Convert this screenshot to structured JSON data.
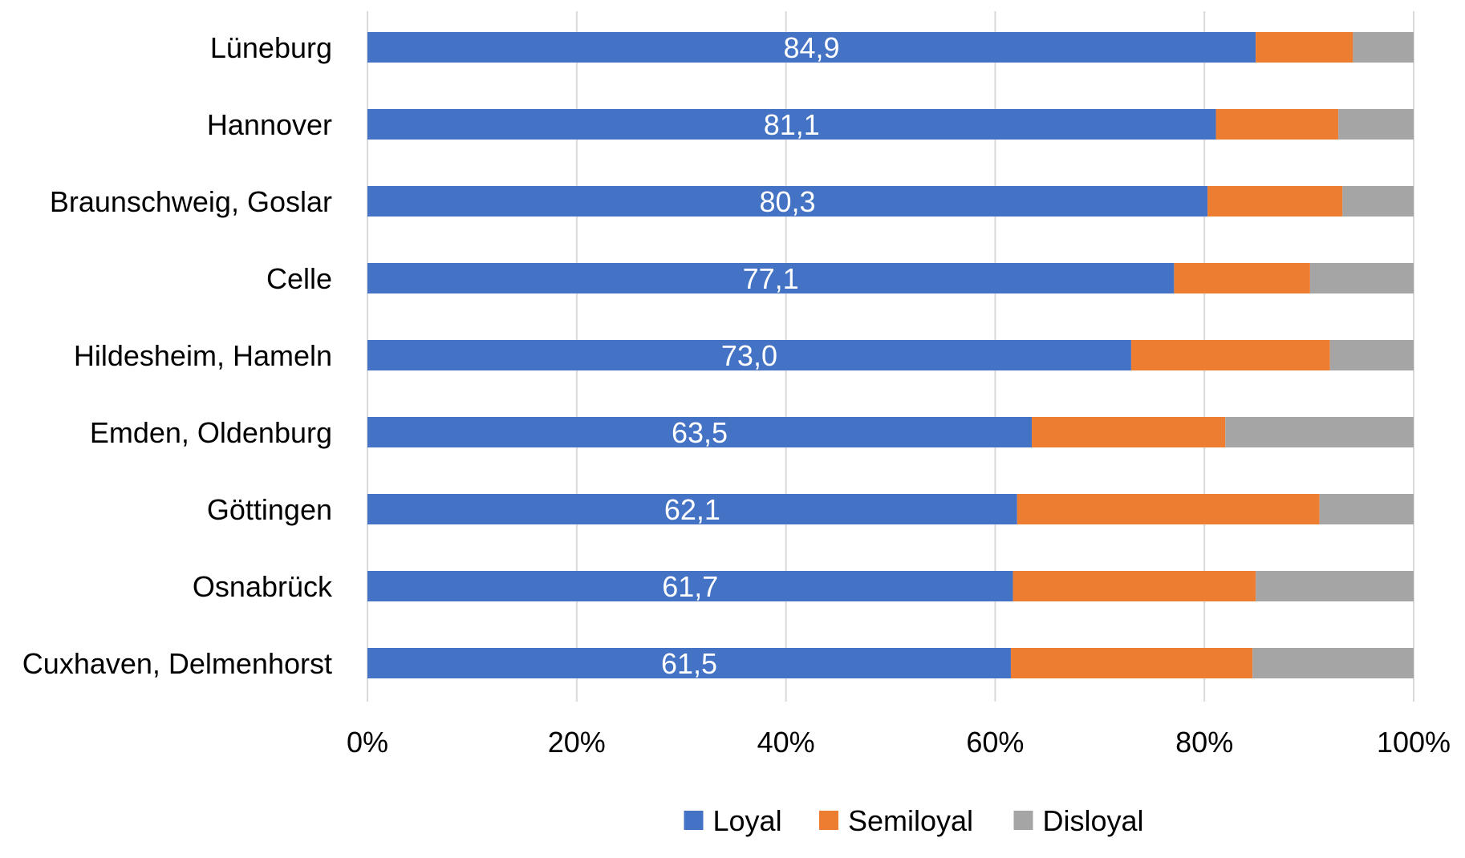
{
  "chart_data": {
    "type": "bar",
    "orientation": "horizontal",
    "stacked": "percent",
    "categories": [
      "Lüneburg",
      "Hannover",
      "Braunschweig, Goslar",
      "Celle",
      "Hildesheim, Hameln",
      "Emden, Oldenburg",
      "Göttingen",
      "Osnabrück",
      "Cuxhaven, Delmenhorst"
    ],
    "series": [
      {
        "name": "Loyal",
        "color": "#4472C4",
        "values": [
          84.9,
          81.1,
          80.3,
          77.1,
          73.0,
          63.5,
          62.1,
          61.7,
          61.5
        ]
      },
      {
        "name": "Semiloyal",
        "color": "#ED7D31",
        "values": [
          9.3,
          11.7,
          12.9,
          13.0,
          19.0,
          18.5,
          28.9,
          23.2,
          23.1
        ]
      },
      {
        "name": "Disloyal",
        "color": "#A5A5A5",
        "values": [
          5.8,
          7.2,
          6.8,
          9.9,
          8.0,
          18.0,
          9.0,
          15.1,
          15.4
        ]
      }
    ],
    "data_labels": [
      "84,9",
      "81,1",
      "80,3",
      "77,1",
      "73,0",
      "63,5",
      "62,1",
      "61,7",
      "61,5"
    ],
    "x_ticks": [
      "0%",
      "20%",
      "40%",
      "60%",
      "80%",
      "100%"
    ],
    "xlim": [
      0,
      100
    ],
    "grid": "vertical",
    "legend": "bottom",
    "title": "",
    "xlabel": "",
    "ylabel": ""
  }
}
